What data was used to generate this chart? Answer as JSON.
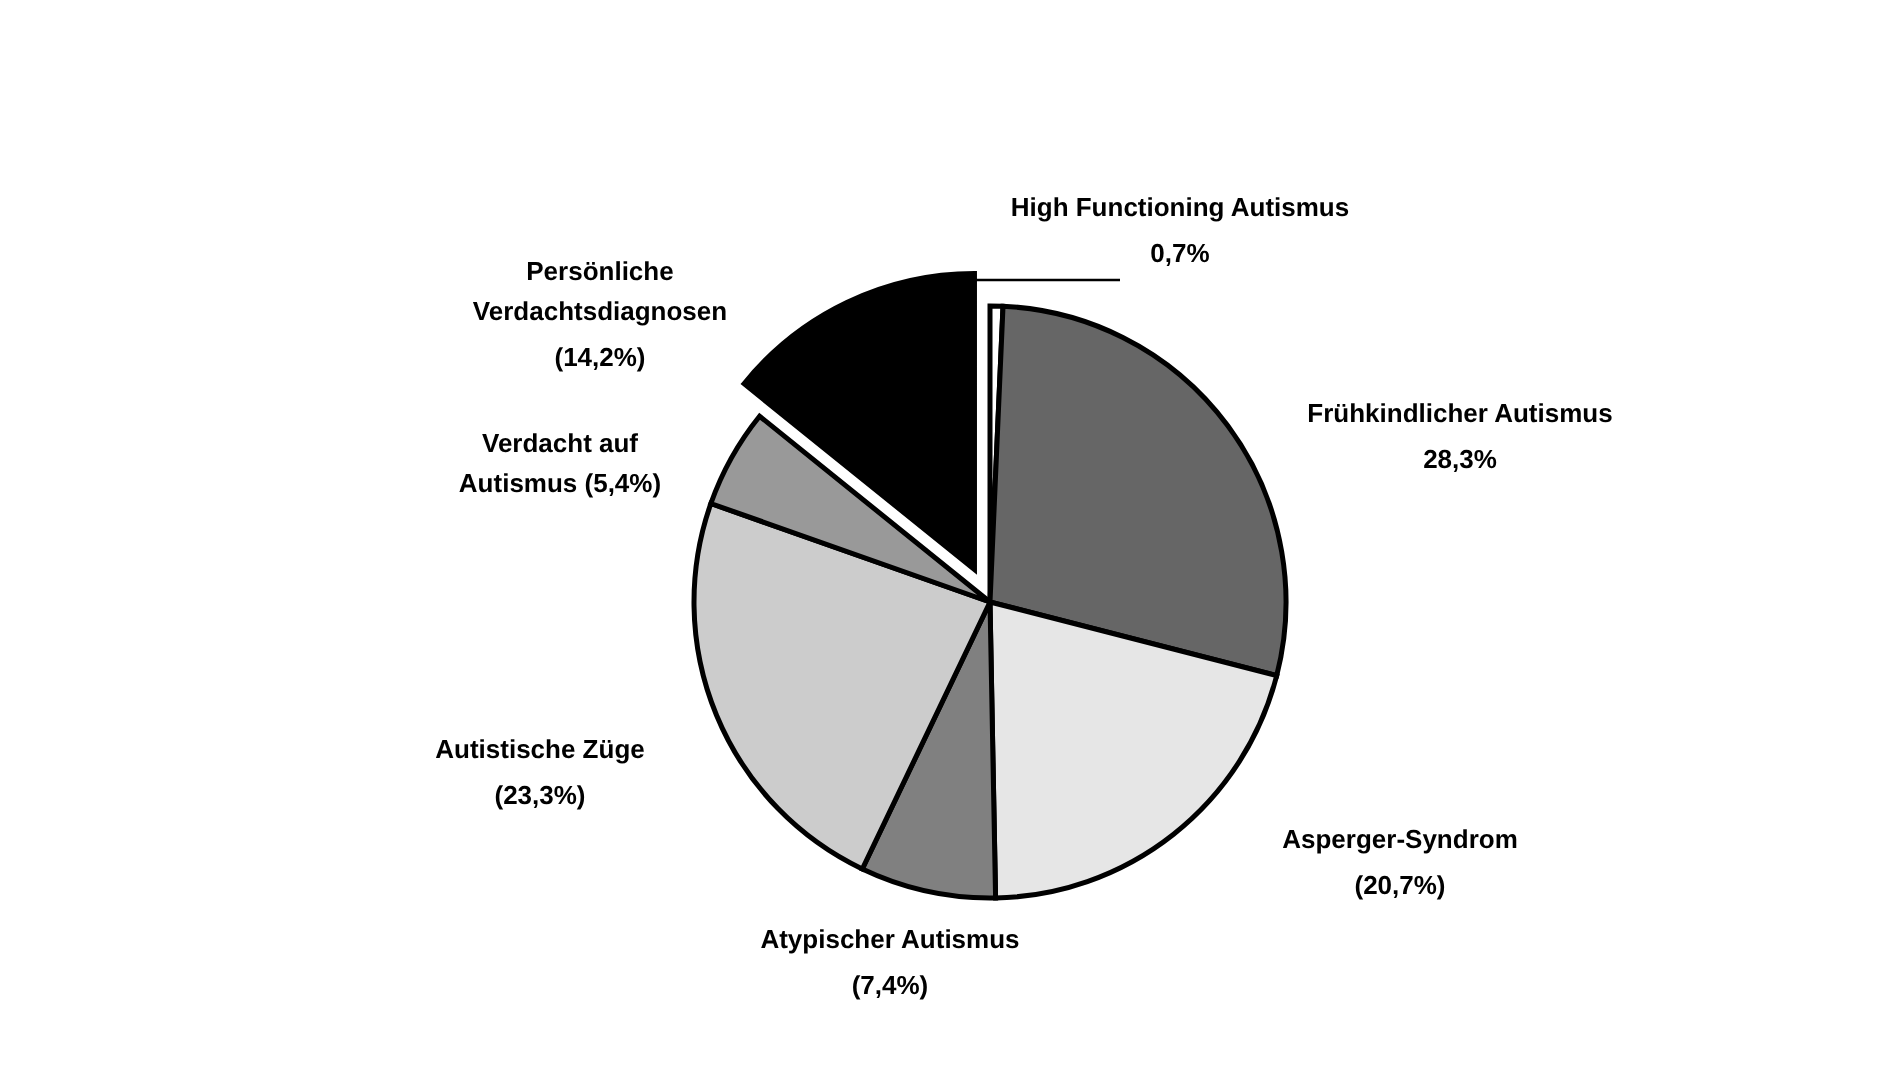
{
  "chart_data": {
    "type": "pie",
    "categories": [
      "High Functioning Autismus",
      "Frühkindlicher Autismus",
      "Asperger-Syndrom",
      "Atypischer Autismus",
      "Autistische Züge",
      "Verdacht auf\nAutismus",
      "Persönliche\nVerdachtsdiagnosen"
    ],
    "values": [
      0.7,
      28.3,
      20.7,
      7.4,
      23.3,
      5.4,
      14.2
    ],
    "value_labels": [
      "0,7%",
      "28,3%",
      "(20,7%)",
      "(7,4%)",
      "(23,3%)",
      "(5,4%)",
      "(14,2%)"
    ],
    "colors": [
      "#ffffff",
      "#666666",
      "#e6e6e6",
      "#808080",
      "#cccccc",
      "#999999",
      "#000000"
    ],
    "legend": false
  }
}
